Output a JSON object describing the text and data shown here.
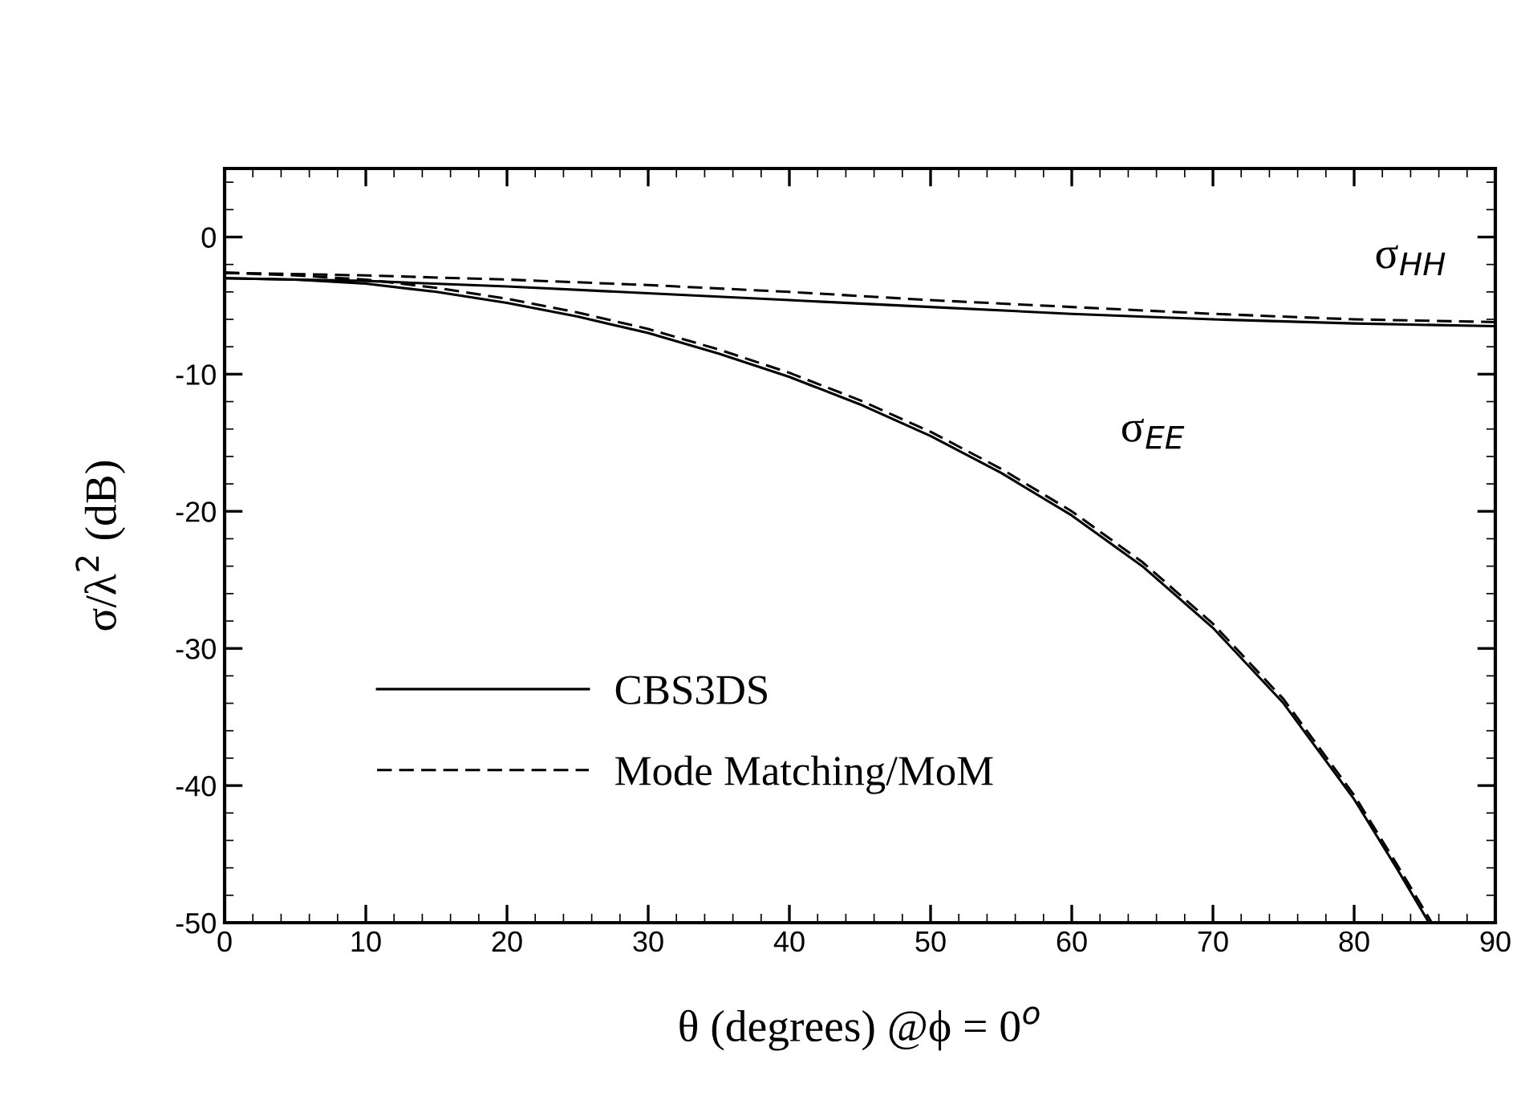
{
  "chart_data": {
    "type": "line",
    "xlabel": "θ (degrees) @ϕ = 0$^{o}$",
    "ylabel": "σ/λ$^{2}$ (dB)",
    "xlim": [
      0,
      90
    ],
    "xticks": [
      0,
      10,
      20,
      30,
      40,
      50,
      60,
      70,
      80,
      90
    ],
    "ylim": [
      -50,
      5
    ],
    "yticks": [
      -50,
      -40,
      -30,
      -20,
      -10,
      0
    ],
    "grid": false,
    "legend": "bottom left",
    "marker": "none",
    "series": [
      {
        "name": "CBS3DS",
        "color": "#000000",
        "line_style": "solid",
        "x": [
          0,
          10,
          20,
          30,
          40,
          50,
          60,
          70,
          80,
          90
        ],
        "values": [
          -3.0,
          -3.2,
          -3.6,
          -4.1,
          -4.6,
          -5.1,
          -5.6,
          -6.0,
          -6.3,
          -6.5
        ]
      },
      {
        "name": "Mode Matching/MoM",
        "color": "#000000",
        "line_style": "dashed",
        "x": [
          0,
          10,
          20,
          30,
          40,
          50,
          60,
          70,
          80,
          90
        ],
        "values": [
          -2.6,
          -2.8,
          -3.1,
          -3.5,
          -4.0,
          -4.6,
          -5.1,
          -5.6,
          -6.0,
          -6.2
        ]
      },
      {
        "color": "#000000",
        "line_style": "solid",
        "x": [
          0,
          5,
          10,
          15,
          20,
          25,
          30,
          35,
          40,
          45,
          50,
          55,
          60,
          65,
          70,
          75,
          80,
          83,
          85.3
        ],
        "values": [
          -3.0,
          -3.1,
          -3.4,
          -4.0,
          -4.8,
          -5.8,
          -7.0,
          -8.5,
          -10.2,
          -12.2,
          -14.5,
          -17.2,
          -20.3,
          -24.0,
          -28.5,
          -34.0,
          -41.0,
          -46.0,
          -50.0
        ]
      },
      {
        "color": "#000000",
        "line_style": "dashed",
        "x": [
          0,
          5,
          10,
          15,
          20,
          25,
          30,
          35,
          40,
          45,
          50,
          55,
          60,
          65,
          70,
          75,
          80,
          83,
          85.5
        ],
        "values": [
          -2.6,
          -2.8,
          -3.1,
          -3.7,
          -4.5,
          -5.5,
          -6.7,
          -8.2,
          -9.9,
          -11.9,
          -14.2,
          -16.9,
          -20.0,
          -23.7,
          -28.2,
          -33.7,
          -40.7,
          -45.7,
          -50.0
        ]
      }
    ],
    "annotations": [
      "σ$_{HH}$",
      "σ$_{EE}$"
    ]
  }
}
